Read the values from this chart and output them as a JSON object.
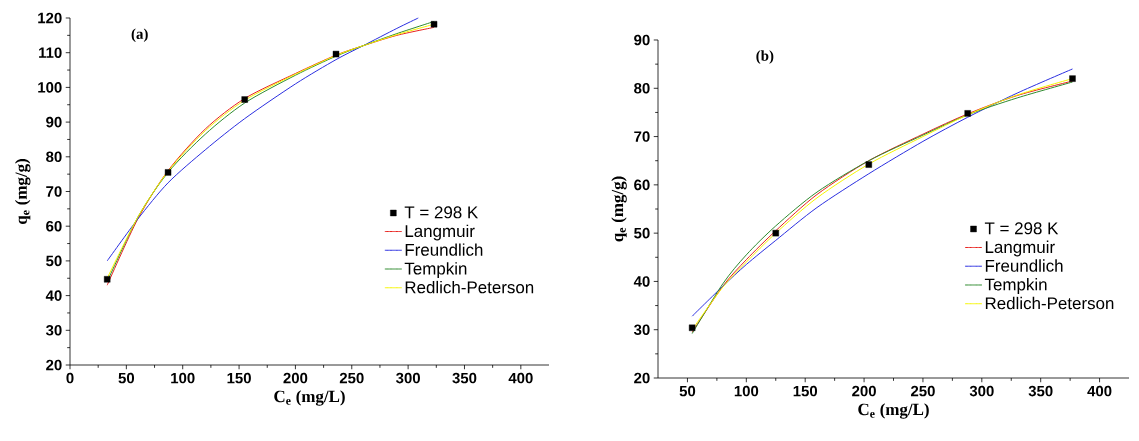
{
  "chart_data": [
    {
      "type": "line",
      "xlabel": "C$_{e}$ (mg/L)",
      "ylabel": "q$_{e}$ (mg/g)",
      "annotations": [
        "(a)"
      ],
      "xlim": [
        0,
        425
      ],
      "ylim": [
        20,
        120
      ],
      "xticks": [
        0,
        50,
        100,
        150,
        200,
        250,
        300,
        350,
        400
      ],
      "yticks": [
        20,
        30,
        40,
        50,
        60,
        70,
        80,
        90,
        100,
        110,
        120
      ],
      "grid": false,
      "legend": "center right",
      "line_style": "solid",
      "series": [
        {
          "name": "T = 298 K",
          "type": "scatter",
          "marker": "square",
          "color": "#000000",
          "x": [
            33,
            87,
            155,
            236,
            323
          ],
          "values": [
            44.7,
            75.5,
            96.5,
            109.6,
            118.2
          ]
        },
        {
          "name": "Langmuir",
          "marker": "none",
          "color": "#e8211d",
          "x": [
            33,
            60,
            87,
            120,
            155,
            200,
            236,
            260,
            290,
            323
          ],
          "values": [
            43,
            62,
            76,
            88,
            96.8,
            104,
            109.3,
            112,
            115,
            117.3
          ]
        },
        {
          "name": "Freundlich",
          "marker": "none",
          "color": "#2a2ee0",
          "x": [
            33,
            60,
            87,
            120,
            155,
            200,
            236,
            260,
            290,
            309
          ],
          "values": [
            50,
            62,
            72.5,
            82,
            91,
            101,
            108,
            112,
            117,
            120
          ]
        },
        {
          "name": "Tempkin",
          "marker": "none",
          "color": "#2e8b2e",
          "x": [
            33,
            60,
            87,
            120,
            155,
            200,
            236,
            260,
            290,
            323
          ],
          "values": [
            44,
            62.5,
            75.5,
            86.5,
            95.5,
            103.5,
            109,
            112,
            115.5,
            119
          ]
        },
        {
          "name": "Redlich-Peterson",
          "marker": "none",
          "color": "#f5f500",
          "x": [
            33,
            60,
            87,
            120,
            155,
            200,
            236,
            260,
            290,
            323
          ],
          "values": [
            45,
            62.5,
            75.8,
            87.5,
            96.3,
            103.8,
            109.2,
            112,
            115.2,
            118.2
          ]
        }
      ]
    },
    {
      "type": "line",
      "xlabel": "C$_{e}$ (mg/L)",
      "ylabel": "q$_{e}$ (mg/g)",
      "annotations": [
        "(b)"
      ],
      "xlim": [
        25,
        425
      ],
      "ylim": [
        20,
        90
      ],
      "xticks": [
        50,
        100,
        150,
        200,
        250,
        300,
        350,
        400
      ],
      "yticks": [
        20,
        30,
        40,
        50,
        60,
        70,
        80,
        90
      ],
      "grid": false,
      "legend": "center right",
      "line_style": "solid",
      "series": [
        {
          "name": "T = 298 K",
          "type": "scatter",
          "marker": "square",
          "color": "#000000",
          "x": [
            54,
            125,
            204,
            288,
            377
          ],
          "values": [
            30.4,
            50,
            64.2,
            74.8,
            82
          ]
        },
        {
          "name": "Langmuir",
          "marker": "none",
          "color": "#e8211d",
          "x": [
            54,
            80,
            100,
            125,
            160,
            204,
            250,
            288,
            330,
            377
          ],
          "values": [
            29.5,
            39,
            44.5,
            50.5,
            58,
            65,
            70.5,
            74.7,
            78.5,
            81.5
          ]
        },
        {
          "name": "Freundlich",
          "marker": "none",
          "color": "#2a2ee0",
          "x": [
            54,
            80,
            100,
            125,
            160,
            204,
            250,
            288,
            330,
            377
          ],
          "values": [
            32.8,
            39,
            43.5,
            48.5,
            55.3,
            62.3,
            69,
            74,
            79,
            84
          ]
        },
        {
          "name": "Tempkin",
          "marker": "none",
          "color": "#2e8b2e",
          "x": [
            54,
            80,
            100,
            125,
            160,
            204,
            250,
            288,
            330,
            377
          ],
          "values": [
            29.2,
            39.5,
            45.5,
            51.5,
            58.5,
            65,
            70.3,
            74.5,
            78,
            81.3
          ]
        },
        {
          "name": "Redlich-Peterson",
          "marker": "none",
          "color": "#f5f500",
          "x": [
            54,
            80,
            100,
            125,
            160,
            204,
            250,
            288,
            330,
            377
          ],
          "values": [
            30,
            38.8,
            44,
            50,
            57.3,
            64.3,
            70,
            74.5,
            78.6,
            82
          ]
        }
      ]
    }
  ]
}
